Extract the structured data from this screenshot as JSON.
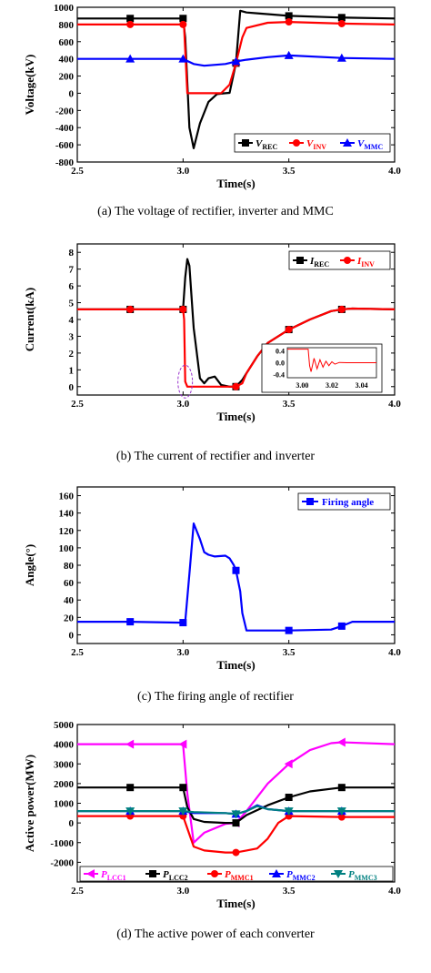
{
  "chart_data": [
    {
      "type": "line",
      "caption": "(a) The voltage of rectifier, inverter and MMC",
      "xlabel": "Time(s)",
      "ylabel": "Voltage(kV)",
      "xlim": [
        2.5,
        4.0
      ],
      "ylim": [
        -800,
        1000
      ],
      "xticks": [
        "2.5",
        "3.0",
        "3.5",
        "4.0"
      ],
      "yticks": [
        "-800",
        "-600",
        "-400",
        "-200",
        "0",
        "200",
        "400",
        "600",
        "800",
        "1000"
      ],
      "legend_position": "bottom-right",
      "series": [
        {
          "name": "V",
          "sub": "REC",
          "color": "#000000",
          "marker": "square",
          "x": [
            2.5,
            2.75,
            3.0,
            3.01,
            3.03,
            3.05,
            3.08,
            3.12,
            3.16,
            3.2,
            3.22,
            3.25,
            3.27,
            3.3,
            3.35,
            3.5,
            3.75,
            4.0
          ],
          "y": [
            870,
            870,
            870,
            650,
            -400,
            -640,
            -350,
            -100,
            -10,
            0,
            5,
            350,
            960,
            940,
            930,
            900,
            880,
            870
          ]
        },
        {
          "name": "V",
          "sub": "INV",
          "color": "#ff0000",
          "marker": "circle",
          "x": [
            2.5,
            2.75,
            3.0,
            3.005,
            3.02,
            3.1,
            3.18,
            3.22,
            3.25,
            3.28,
            3.3,
            3.4,
            3.5,
            3.75,
            4.0
          ],
          "y": [
            800,
            800,
            800,
            760,
            0,
            0,
            0,
            100,
            350,
            650,
            760,
            820,
            830,
            810,
            800
          ]
        },
        {
          "name": "V",
          "sub": "MMC",
          "color": "#0000ff",
          "marker": "triangle",
          "x": [
            2.5,
            2.75,
            3.0,
            3.05,
            3.1,
            3.2,
            3.25,
            3.3,
            3.4,
            3.5,
            3.75,
            4.0
          ],
          "y": [
            400,
            400,
            400,
            340,
            320,
            340,
            370,
            390,
            420,
            440,
            410,
            400
          ]
        }
      ]
    },
    {
      "type": "line",
      "caption": "(b) The current of rectifier and inverter",
      "xlabel": "Time(s)",
      "ylabel": "Current(kA)",
      "xlim": [
        2.5,
        4.0
      ],
      "ylim": [
        -0.5,
        8.5
      ],
      "xticks": [
        "2.5",
        "3.0",
        "3.5",
        "4.0"
      ],
      "yticks": [
        "0",
        "1",
        "2",
        "3",
        "4",
        "5",
        "6",
        "7",
        "8"
      ],
      "legend_position": "top-right",
      "series": [
        {
          "name": "I",
          "sub": "REC",
          "color": "#000000",
          "marker": "square",
          "x": [
            2.5,
            2.75,
            3.0,
            3.01,
            3.02,
            3.03,
            3.05,
            3.08,
            3.1,
            3.12,
            3.15,
            3.18,
            3.22,
            3.25,
            3.28,
            3.3,
            3.35,
            3.4,
            3.5,
            3.6,
            3.7,
            3.75,
            3.8,
            4.0
          ],
          "y": [
            4.6,
            4.6,
            4.6,
            6.5,
            7.6,
            7.2,
            3.5,
            0.5,
            0.2,
            0.5,
            0.6,
            0.1,
            0.0,
            0.0,
            0.4,
            0.8,
            1.8,
            2.6,
            3.4,
            4.0,
            4.5,
            4.6,
            4.65,
            4.6
          ]
        },
        {
          "name": "I",
          "sub": "INV",
          "color": "#ff0000",
          "marker": "circle",
          "x": [
            2.5,
            2.75,
            3.0,
            3.005,
            3.01,
            3.02,
            3.05,
            3.1,
            3.2,
            3.25,
            3.28,
            3.3,
            3.35,
            3.4,
            3.5,
            3.6,
            3.7,
            3.75,
            3.8,
            4.0
          ],
          "y": [
            4.6,
            4.6,
            4.6,
            4.0,
            0.3,
            0.0,
            0.0,
            0.0,
            0.0,
            0.0,
            0.2,
            0.8,
            1.8,
            2.6,
            3.4,
            4.0,
            4.5,
            4.6,
            4.65,
            4.6
          ]
        }
      ],
      "inset": {
        "xlim": [
          2.99,
          3.05
        ],
        "ylim": [
          -0.5,
          0.5
        ],
        "xticks": [
          "3.00",
          "3.02",
          "3.04"
        ],
        "yticks": [
          "0.4",
          "0.0",
          "-0.4"
        ],
        "color": "#ff0000",
        "x": [
          2.99,
          3.004,
          3.005,
          3.006,
          3.008,
          3.01,
          3.012,
          3.014,
          3.016,
          3.018,
          3.02,
          3.022,
          3.025,
          3.03,
          3.04,
          3.05
        ],
        "y": [
          0.45,
          0.45,
          -0.1,
          -0.3,
          0.15,
          -0.2,
          0.1,
          -0.15,
          0.05,
          -0.1,
          0.03,
          -0.05,
          0.01,
          0.0,
          0.0,
          0.0
        ]
      }
    },
    {
      "type": "line",
      "caption": "(c) The firing angle of rectifier",
      "xlabel": "Time(s)",
      "ylabel": "Angle(°)",
      "xlim": [
        2.5,
        4.0
      ],
      "ylim": [
        -10,
        170
      ],
      "xticks": [
        "2.5",
        "3.0",
        "3.5",
        "4.0"
      ],
      "yticks": [
        "0",
        "20",
        "40",
        "60",
        "80",
        "100",
        "120",
        "140",
        "160"
      ],
      "legend_position": "top-right",
      "series": [
        {
          "name": "Firing angle",
          "color": "#0000ff",
          "marker": "square",
          "x": [
            2.5,
            2.75,
            3.0,
            3.01,
            3.03,
            3.05,
            3.08,
            3.1,
            3.12,
            3.15,
            3.2,
            3.22,
            3.24,
            3.25,
            3.27,
            3.28,
            3.3,
            3.5,
            3.7,
            3.75,
            3.8,
            4.0
          ],
          "y": [
            15,
            15,
            14,
            15,
            70,
            128,
            110,
            95,
            92,
            90,
            91,
            88,
            80,
            74,
            50,
            25,
            5,
            5,
            6,
            10,
            15,
            15
          ]
        }
      ]
    },
    {
      "type": "line",
      "caption": "(d) The active power of each converter",
      "xlabel": "Time(s)",
      "ylabel": "Active power(MW)",
      "xlim": [
        2.5,
        4.0
      ],
      "ylim": [
        -3000,
        5000
      ],
      "xticks": [
        "2.5",
        "3.0",
        "3.5",
        "4.0"
      ],
      "yticks": [
        "-2000",
        "-1000",
        "0",
        "1000",
        "2000",
        "3000",
        "4000",
        "5000"
      ],
      "legend_position": "bottom",
      "series": [
        {
          "name": "P",
          "sub": "LCC1",
          "color": "#ff00ff",
          "marker": "triangle-left",
          "x": [
            2.5,
            2.75,
            3.0,
            3.02,
            3.05,
            3.1,
            3.2,
            3.25,
            3.3,
            3.4,
            3.5,
            3.6,
            3.7,
            3.75,
            4.0
          ],
          "y": [
            4000,
            4000,
            4000,
            1500,
            -1000,
            -500,
            -50,
            0,
            600,
            2000,
            3000,
            3700,
            4050,
            4100,
            4000
          ]
        },
        {
          "name": "P",
          "sub": "LCC2",
          "color": "#000000",
          "marker": "square",
          "x": [
            2.5,
            2.75,
            3.0,
            3.02,
            3.05,
            3.1,
            3.2,
            3.25,
            3.3,
            3.4,
            3.5,
            3.6,
            3.75,
            4.0
          ],
          "y": [
            1800,
            1800,
            1800,
            800,
            200,
            50,
            0,
            0,
            400,
            900,
            1300,
            1600,
            1800,
            1800
          ]
        },
        {
          "name": "P",
          "sub": "MMC1",
          "color": "#ff0000",
          "marker": "circle",
          "x": [
            2.5,
            2.75,
            3.0,
            3.05,
            3.1,
            3.2,
            3.25,
            3.3,
            3.35,
            3.4,
            3.45,
            3.5,
            3.75,
            4.0
          ],
          "y": [
            350,
            350,
            350,
            -1200,
            -1400,
            -1500,
            -1500,
            -1400,
            -1300,
            -800,
            0,
            350,
            300,
            300
          ]
        },
        {
          "name": "P",
          "sub": "MMC2",
          "color": "#0000ff",
          "marker": "triangle",
          "x": [
            2.5,
            2.75,
            3.0,
            3.05,
            3.2,
            3.25,
            3.3,
            3.35,
            3.4,
            3.5,
            3.75,
            4.0
          ],
          "y": [
            600,
            600,
            600,
            500,
            500,
            450,
            600,
            900,
            700,
            600,
            600,
            600
          ]
        },
        {
          "name": "P",
          "sub": "MMC3",
          "color": "#008080",
          "marker": "triangle-down",
          "x": [
            2.5,
            2.75,
            3.0,
            3.05,
            3.2,
            3.25,
            3.3,
            3.35,
            3.4,
            3.5,
            3.75,
            4.0
          ],
          "y": [
            600,
            600,
            600,
            550,
            500,
            450,
            600,
            850,
            700,
            600,
            600,
            600
          ]
        }
      ]
    }
  ]
}
